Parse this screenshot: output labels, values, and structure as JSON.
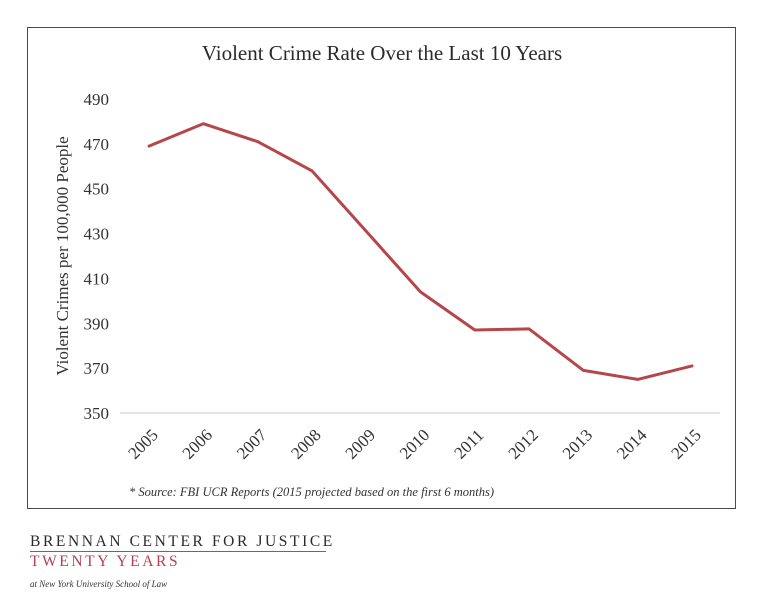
{
  "chart_data": {
    "type": "line",
    "title": "Violent Crime Rate Over the Last 10 Years",
    "xlabel": "",
    "ylabel": "Violent Crimes per 100,000 People",
    "categories": [
      "2005",
      "2006",
      "2007",
      "2008",
      "2009",
      "2010",
      "2011",
      "2012",
      "2013",
      "2014",
      "2015"
    ],
    "series": [
      {
        "name": "Violent Crime Rate",
        "color": "#b5474b",
        "values": [
          469,
          479,
          471,
          458,
          431,
          404,
          387,
          387.5,
          369,
          365,
          371
        ]
      }
    ],
    "ylim": [
      350,
      490
    ],
    "yticks": [
      "490",
      "470",
      "450",
      "430",
      "410",
      "390",
      "370",
      "350"
    ],
    "grid": false,
    "legend": "none",
    "annotation": "* Source: FBI UCR Reports (2015 projected based on the first 6 months)"
  },
  "branding": {
    "line1": "BRENNAN CENTER FOR JUSTICE",
    "line2": "TWENTY YEARS",
    "line3": "at New York University School of Law",
    "accent_color": "#b5404f"
  }
}
